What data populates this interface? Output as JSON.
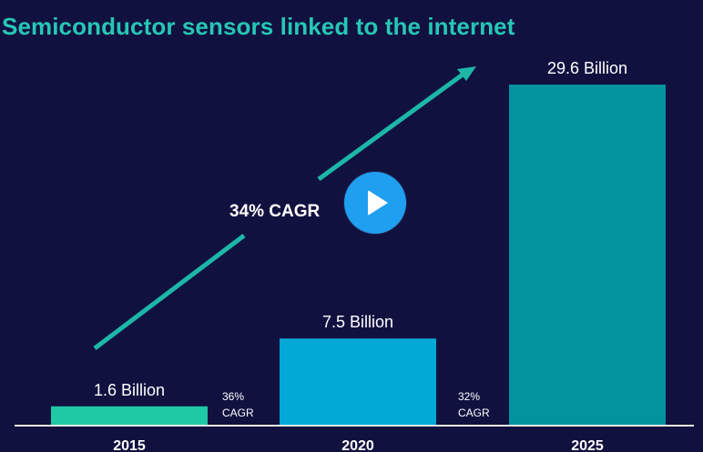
{
  "chart_data": {
    "type": "bar",
    "title": "Semiconductor sensors linked to the internet",
    "categories": [
      "2015",
      "2020",
      "2025"
    ],
    "values": [
      1.6,
      7.5,
      29.6
    ],
    "value_labels": [
      "1.6 Billion",
      "7.5 Billion",
      "29.6 Billion"
    ],
    "bar_colors": [
      "#1fc9a6",
      "#03a9d6",
      "#03939f"
    ],
    "ylim": [
      0,
      29.6
    ],
    "grid": false,
    "xlabel": "",
    "ylabel": "",
    "annotations": {
      "overall_cagr": "34% CAGR",
      "cagr_2015_2020": [
        "36%",
        "CAGR"
      ],
      "cagr_2020_2025": [
        "32%",
        "CAGR"
      ]
    }
  },
  "colors": {
    "background": "#111140",
    "title": "#26c7b4",
    "arrow": "#1cb7a8",
    "axis": "#e8e8e8",
    "label": "#ffffff",
    "play_button": "#1f9ff0"
  },
  "icons": {
    "play": "play-icon"
  }
}
